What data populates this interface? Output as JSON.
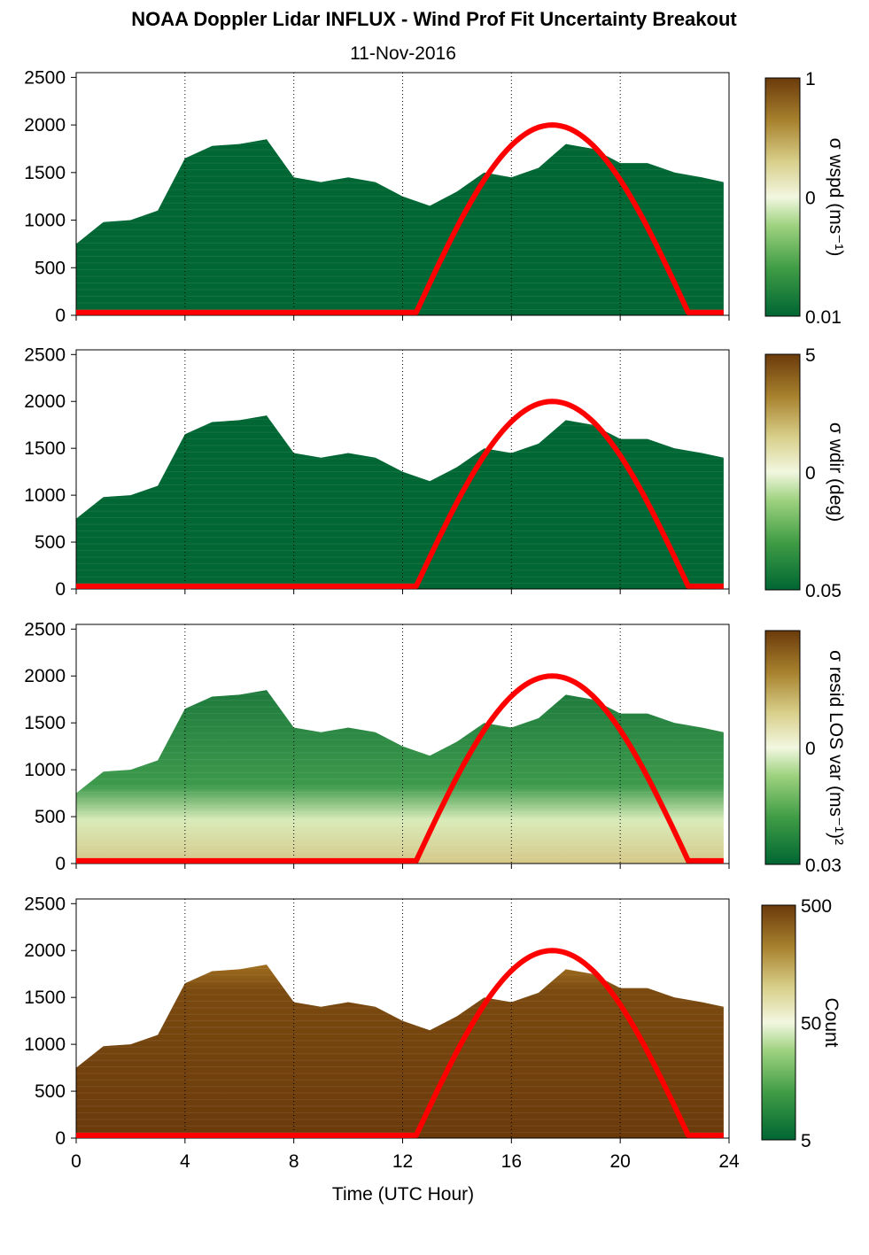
{
  "title": "NOAA Doppler Lidar INFLUX - Wind Prof Fit Uncertainty Breakout",
  "subtitle": "11-Nov-2016",
  "colors": {
    "dark_green": "#006633",
    "light": "#f2f7e0",
    "brown": "#6b3a0b",
    "sun_curve": "#ff0000"
  },
  "chart_data": [
    {
      "type": "heatmap",
      "name": "wspd",
      "ylabel": "",
      "yticks": [
        "0",
        "500",
        "1000",
        "1500",
        "2000",
        "2500"
      ],
      "ylim": [
        0,
        2550
      ],
      "xlim": [
        0,
        24
      ],
      "colorbar": {
        "label": "σ wspd (ms⁻¹)",
        "ticks": [
          "1",
          "0",
          "0.01"
        ],
        "scale": "log"
      },
      "top_height_m": [
        [
          0,
          750
        ],
        [
          1,
          980
        ],
        [
          2,
          1000
        ],
        [
          3,
          1100
        ],
        [
          4,
          1650
        ],
        [
          5,
          1780
        ],
        [
          6,
          1800
        ],
        [
          7,
          1850
        ],
        [
          8,
          1450
        ],
        [
          9,
          1400
        ],
        [
          10,
          1450
        ],
        [
          11,
          1400
        ],
        [
          12,
          1250
        ],
        [
          13,
          1150
        ],
        [
          14,
          1300
        ],
        [
          15,
          1500
        ],
        [
          16,
          1450
        ],
        [
          17,
          1550
        ],
        [
          18,
          1800
        ],
        [
          19,
          1750
        ],
        [
          20,
          1600
        ],
        [
          21,
          1600
        ],
        [
          22,
          1500
        ],
        [
          23,
          1450
        ],
        [
          23.8,
          1400
        ]
      ],
      "sun_curve": {
        "start_hour": 12.5,
        "peak_hour": 17.5,
        "end_hour": 22.5,
        "peak_height_m": 2000,
        "base_height_m": 30
      }
    },
    {
      "type": "heatmap",
      "name": "wdir",
      "yticks": [
        "0",
        "500",
        "1000",
        "1500",
        "2000",
        "2500"
      ],
      "ylim": [
        0,
        2550
      ],
      "xlim": [
        0,
        24
      ],
      "colorbar": {
        "label": "σ wdir (deg)",
        "ticks": [
          "5",
          "0",
          "0.05"
        ],
        "scale": "log"
      },
      "sun_curve": {
        "start_hour": 12.5,
        "peak_hour": 17.5,
        "end_hour": 22.5,
        "peak_height_m": 2000,
        "base_height_m": 30
      }
    },
    {
      "type": "heatmap",
      "name": "resid LOS var",
      "yticks": [
        "0",
        "500",
        "1000",
        "1500",
        "2000",
        "2500"
      ],
      "ylim": [
        0,
        2550
      ],
      "xlim": [
        0,
        24
      ],
      "colorbar": {
        "label": "σ resid LOS var (ms⁻¹)²",
        "ticks": [
          "0",
          "0.03"
        ],
        "scale": "log"
      },
      "sun_curve": {
        "start_hour": 12.5,
        "peak_hour": 17.5,
        "end_hour": 22.5,
        "peak_height_m": 2000,
        "base_height_m": 30
      }
    },
    {
      "type": "heatmap",
      "name": "count",
      "yticks": [
        "0",
        "500",
        "1000",
        "1500",
        "2000",
        "2500"
      ],
      "ylim": [
        0,
        2550
      ],
      "xlim": [
        0,
        24
      ],
      "xticks": [
        "0",
        "4",
        "8",
        "12",
        "16",
        "20",
        "24"
      ],
      "xlabel": "Time (UTC Hour)",
      "colorbar": {
        "label": "Count",
        "ticks": [
          "500",
          "50",
          "5"
        ],
        "scale": "log"
      },
      "sun_curve": {
        "start_hour": 12.5,
        "peak_hour": 17.5,
        "end_hour": 22.5,
        "peak_height_m": 2000,
        "base_height_m": 30
      }
    }
  ]
}
